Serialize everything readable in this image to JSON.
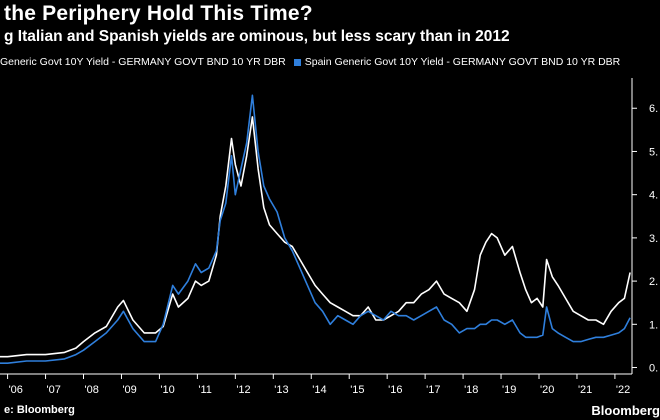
{
  "title": "the Periphery Hold This Time?",
  "subtitle": "g Italian and Spanish yields are ominous, but less scary than in 2012",
  "legend": {
    "italy_label": "Generic Govt 10Y Yield - GERMANY GOVT BND 10 YR DBR",
    "spain_label": "Spain Generic Govt 10Y Yield - GERMANY GOVT BND 10 YR DBR"
  },
  "footer": {
    "source": "e: Bloomberg",
    "brand": "Bloomberg"
  },
  "colors": {
    "italy": "#ffffff",
    "spain": "#2f7fdc",
    "background": "#000000",
    "axis": "#ffffff"
  },
  "chart_data": {
    "type": "line",
    "title": "the Periphery Hold This Time?",
    "subtitle": "g Italian and Spanish yields are ominous, but less scary than in 2012",
    "x_tick_labels": [
      "'06",
      "'07",
      "'08",
      "'09",
      "'10",
      "'11",
      "'12",
      "'13",
      "'14",
      "'15",
      "'16",
      "'17",
      "'18",
      "'19",
      "'20",
      "'21",
      "'22"
    ],
    "y_tick_labels": [
      "0.",
      "1.",
      "2.",
      "3.",
      "4.",
      "5.",
      "6."
    ],
    "xlim": [
      2005.8,
      2022.45
    ],
    "ylim": [
      -0.15,
      6.7
    ],
    "grid": false,
    "legend_position": "top",
    "series": [
      {
        "name": "Generic Govt 10Y Yield - GERMANY GOVT BND 10 YR DBR",
        "color": "#ffffff",
        "x": [
          2005.8,
          2006.0,
          2006.5,
          2007.0,
          2007.5,
          2007.8,
          2008.0,
          2008.3,
          2008.6,
          2008.9,
          2009.05,
          2009.3,
          2009.6,
          2009.9,
          2010.1,
          2010.35,
          2010.5,
          2010.75,
          2010.95,
          2011.1,
          2011.3,
          2011.5,
          2011.6,
          2011.75,
          2011.9,
          2012.0,
          2012.15,
          2012.3,
          2012.45,
          2012.6,
          2012.75,
          2012.9,
          2013.1,
          2013.3,
          2013.5,
          2013.7,
          2013.9,
          2014.1,
          2014.3,
          2014.5,
          2014.7,
          2014.9,
          2015.1,
          2015.3,
          2015.5,
          2015.7,
          2015.9,
          2016.1,
          2016.3,
          2016.5,
          2016.7,
          2016.9,
          2017.1,
          2017.3,
          2017.5,
          2017.7,
          2017.9,
          2018.1,
          2018.3,
          2018.45,
          2018.6,
          2018.75,
          2018.9,
          2019.1,
          2019.3,
          2019.5,
          2019.65,
          2019.8,
          2019.95,
          2020.1,
          2020.2,
          2020.35,
          2020.5,
          2020.7,
          2020.9,
          2021.1,
          2021.3,
          2021.5,
          2021.7,
          2021.9,
          2022.1,
          2022.25,
          2022.4
        ],
        "values": [
          0.25,
          0.25,
          0.3,
          0.3,
          0.35,
          0.45,
          0.6,
          0.8,
          0.95,
          1.4,
          1.55,
          1.1,
          0.8,
          0.8,
          0.95,
          1.7,
          1.4,
          1.6,
          2.0,
          1.9,
          2.0,
          2.6,
          3.5,
          4.2,
          5.3,
          4.7,
          4.2,
          4.9,
          5.8,
          4.6,
          3.7,
          3.3,
          3.1,
          2.9,
          2.8,
          2.5,
          2.2,
          1.9,
          1.7,
          1.5,
          1.4,
          1.3,
          1.2,
          1.2,
          1.4,
          1.1,
          1.1,
          1.2,
          1.3,
          1.5,
          1.5,
          1.7,
          1.8,
          2.0,
          1.7,
          1.6,
          1.5,
          1.3,
          1.8,
          2.6,
          2.9,
          3.1,
          3.0,
          2.6,
          2.8,
          2.2,
          1.8,
          1.5,
          1.6,
          1.4,
          2.5,
          2.1,
          1.9,
          1.6,
          1.3,
          1.2,
          1.1,
          1.1,
          1.0,
          1.3,
          1.5,
          1.6,
          2.2
        ]
      },
      {
        "name": "Spain Generic Govt 10Y Yield - GERMANY GOVT BND 10 YR DBR",
        "color": "#2f7fdc",
        "x": [
          2005.8,
          2006.0,
          2006.5,
          2007.0,
          2007.5,
          2007.8,
          2008.0,
          2008.3,
          2008.6,
          2008.9,
          2009.05,
          2009.3,
          2009.6,
          2009.9,
          2010.1,
          2010.35,
          2010.5,
          2010.75,
          2010.95,
          2011.1,
          2011.3,
          2011.5,
          2011.6,
          2011.75,
          2011.9,
          2012.0,
          2012.15,
          2012.3,
          2012.45,
          2012.6,
          2012.75,
          2012.9,
          2013.1,
          2013.3,
          2013.5,
          2013.7,
          2013.9,
          2014.1,
          2014.3,
          2014.5,
          2014.7,
          2014.9,
          2015.1,
          2015.3,
          2015.5,
          2015.7,
          2015.9,
          2016.1,
          2016.3,
          2016.5,
          2016.7,
          2016.9,
          2017.1,
          2017.3,
          2017.5,
          2017.7,
          2017.9,
          2018.1,
          2018.3,
          2018.45,
          2018.6,
          2018.75,
          2018.9,
          2019.1,
          2019.3,
          2019.5,
          2019.65,
          2019.8,
          2019.95,
          2020.1,
          2020.2,
          2020.35,
          2020.5,
          2020.7,
          2020.9,
          2021.1,
          2021.3,
          2021.5,
          2021.7,
          2021.9,
          2022.1,
          2022.25,
          2022.4
        ],
        "values": [
          0.1,
          0.1,
          0.15,
          0.15,
          0.2,
          0.3,
          0.4,
          0.6,
          0.8,
          1.1,
          1.3,
          0.9,
          0.6,
          0.6,
          1.0,
          1.9,
          1.7,
          2.0,
          2.4,
          2.2,
          2.3,
          2.7,
          3.4,
          3.8,
          4.9,
          4.0,
          4.6,
          5.2,
          6.3,
          5.0,
          4.2,
          3.9,
          3.6,
          3.0,
          2.7,
          2.3,
          1.9,
          1.5,
          1.3,
          1.0,
          1.2,
          1.1,
          1.0,
          1.2,
          1.3,
          1.2,
          1.1,
          1.3,
          1.2,
          1.2,
          1.1,
          1.2,
          1.3,
          1.4,
          1.1,
          1.0,
          0.8,
          0.9,
          0.9,
          1.0,
          1.0,
          1.1,
          1.1,
          1.0,
          1.1,
          0.8,
          0.7,
          0.7,
          0.7,
          0.75,
          1.4,
          0.9,
          0.8,
          0.7,
          0.6,
          0.6,
          0.65,
          0.7,
          0.7,
          0.75,
          0.8,
          0.9,
          1.15
        ]
      }
    ]
  }
}
